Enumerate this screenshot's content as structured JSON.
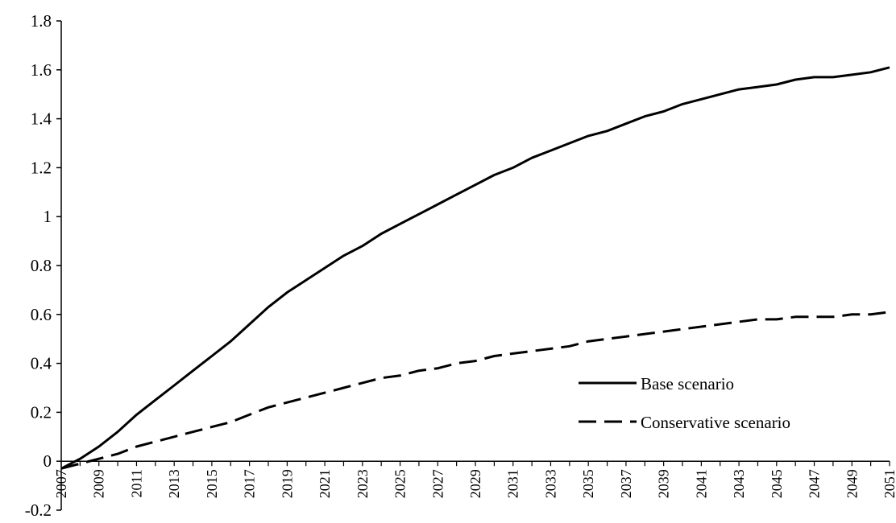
{
  "chart_data": {
    "type": "line",
    "title": "",
    "xlabel": "",
    "ylabel": "",
    "ylim": [
      -0.2,
      1.8
    ],
    "y_ticks": [
      "-0.2",
      "0",
      "0.2",
      "0.4",
      "0.6",
      "0.8",
      "1",
      "1.2",
      "1.4",
      "1.6",
      "1.8"
    ],
    "x_ticks": [
      "2007",
      "2009",
      "2011",
      "2013",
      "2015",
      "2017",
      "2019",
      "2021",
      "2023",
      "2025",
      "2027",
      "2029",
      "2031",
      "2033",
      "2035",
      "2037",
      "2039",
      "2041",
      "2043",
      "2045",
      "2047",
      "2049",
      "2051"
    ],
    "x": [
      2007,
      2008,
      2009,
      2010,
      2011,
      2012,
      2013,
      2014,
      2015,
      2016,
      2017,
      2018,
      2019,
      2020,
      2021,
      2022,
      2023,
      2024,
      2025,
      2026,
      2027,
      2028,
      2029,
      2030,
      2031,
      2032,
      2033,
      2034,
      2035,
      2036,
      2037,
      2038,
      2039,
      2040,
      2041,
      2042,
      2043,
      2044,
      2045,
      2046,
      2047,
      2048,
      2049,
      2050,
      2051
    ],
    "grid": false,
    "legend_position": "lower-right",
    "series": [
      {
        "name": "Base scenario",
        "line_style": "solid",
        "color": "#000000",
        "values": [
          -0.03,
          0.01,
          0.06,
          0.12,
          0.19,
          0.25,
          0.31,
          0.37,
          0.43,
          0.49,
          0.56,
          0.63,
          0.69,
          0.74,
          0.79,
          0.84,
          0.88,
          0.93,
          0.97,
          1.01,
          1.05,
          1.09,
          1.13,
          1.17,
          1.2,
          1.24,
          1.27,
          1.3,
          1.33,
          1.35,
          1.38,
          1.41,
          1.43,
          1.46,
          1.48,
          1.5,
          1.52,
          1.53,
          1.54,
          1.56,
          1.57,
          1.57,
          1.58,
          1.59,
          1.61
        ]
      },
      {
        "name": "Conservative scenario",
        "line_style": "dashed",
        "color": "#000000",
        "values": [
          -0.03,
          -0.01,
          0.01,
          0.03,
          0.06,
          0.08,
          0.1,
          0.12,
          0.14,
          0.16,
          0.19,
          0.22,
          0.24,
          0.26,
          0.28,
          0.3,
          0.32,
          0.34,
          0.35,
          0.37,
          0.38,
          0.4,
          0.41,
          0.43,
          0.44,
          0.45,
          0.46,
          0.47,
          0.49,
          0.5,
          0.51,
          0.52,
          0.53,
          0.54,
          0.55,
          0.56,
          0.57,
          0.58,
          0.58,
          0.59,
          0.59,
          0.59,
          0.6,
          0.6,
          0.61
        ]
      }
    ]
  }
}
